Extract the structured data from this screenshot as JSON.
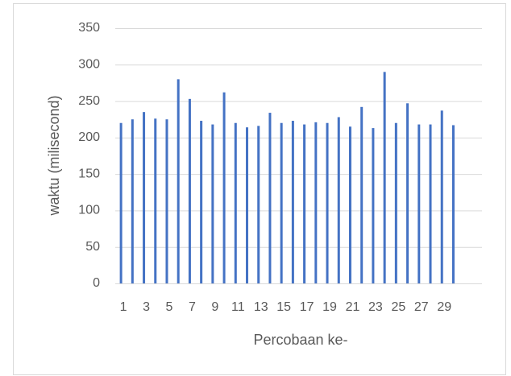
{
  "chart_data": {
    "type": "bar",
    "categories": [
      1,
      null,
      3,
      null,
      5,
      null,
      7,
      null,
      9,
      null,
      11,
      null,
      13,
      null,
      15,
      null,
      17,
      null,
      19,
      null,
      21,
      null,
      23,
      null,
      25,
      null,
      27,
      null,
      29,
      null,
      null,
      null
    ],
    "values": [
      220,
      225,
      235,
      226,
      225,
      280,
      253,
      223,
      218,
      262,
      220,
      214,
      216,
      234,
      220,
      223,
      218,
      221,
      220,
      228,
      215,
      242,
      213,
      290,
      220,
      247,
      218,
      218,
      237,
      217,
      null,
      null
    ],
    "color": "#4472c4",
    "ylim": [
      0,
      350
    ],
    "yticks": [
      0,
      50,
      100,
      150,
      200,
      250,
      300,
      350
    ],
    "grid": true,
    "ylabel": "waktu (milisecond)",
    "xlabel": "Percobaan ke-"
  }
}
